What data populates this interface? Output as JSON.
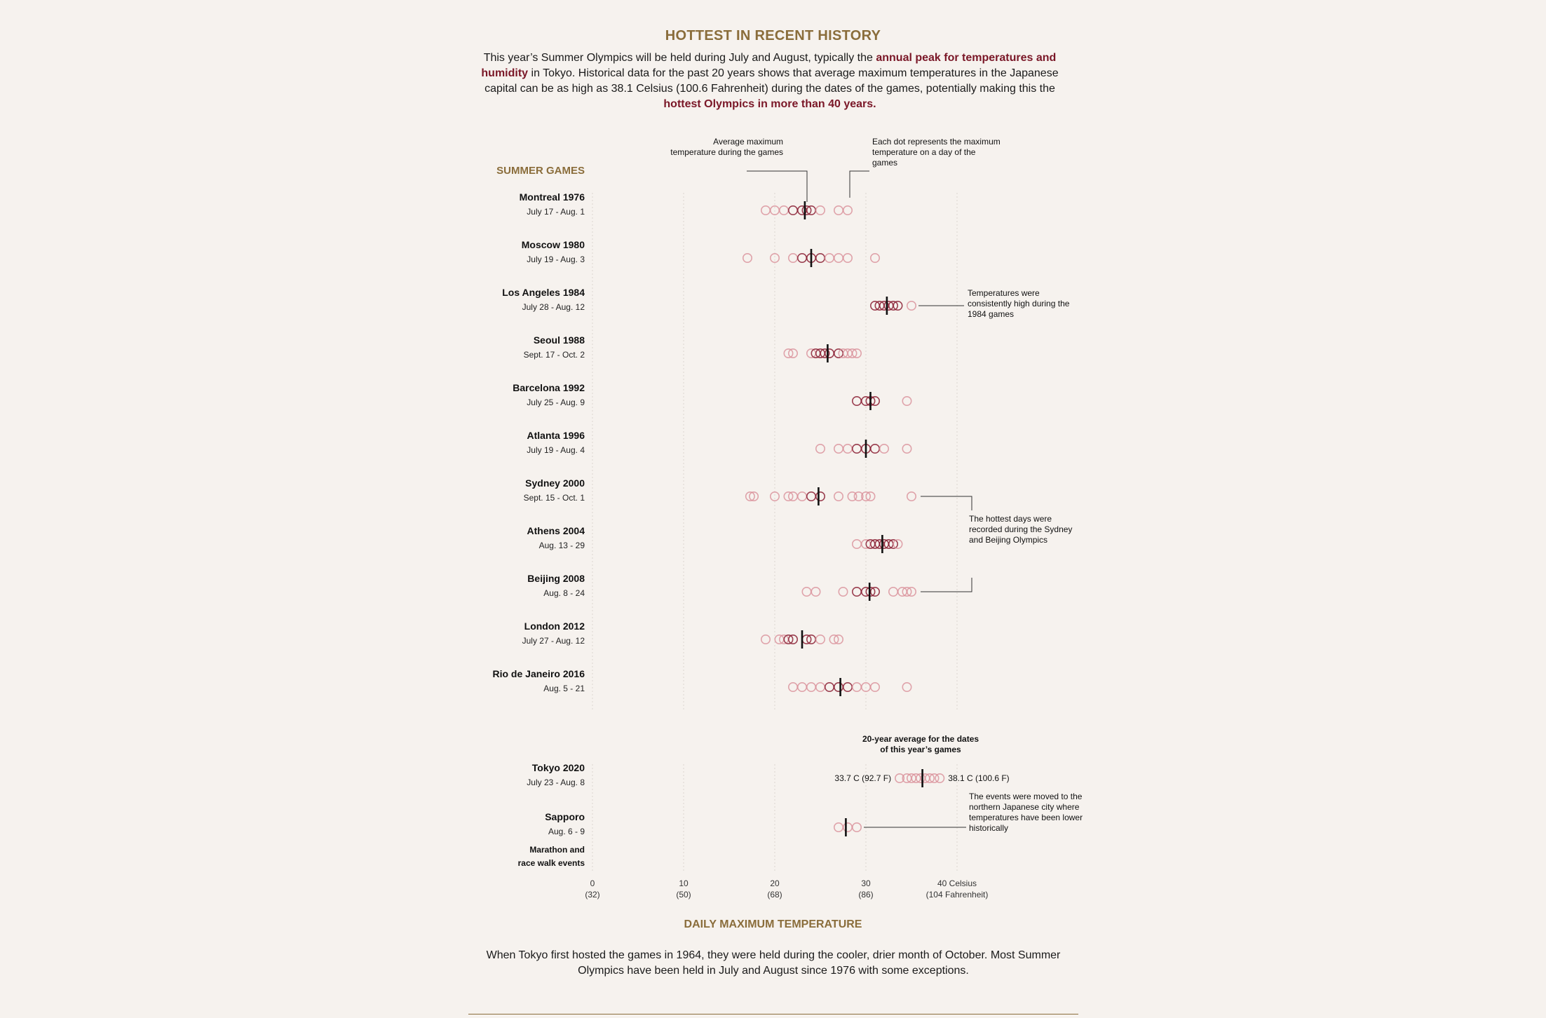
{
  "header": {
    "title": "HOTTEST IN RECENT HISTORY",
    "intro_1": "This year’s Summer Olympics will be held during July and August, typically the ",
    "intro_hl_1": "annual peak for temperatures and humidity",
    "intro_2": " in Tokyo. Historical data for the past 20 years shows that average maximum temperatures in the Japanese capital can be as high as 38.1 Celsius (100.6 Fahrenheit) during the dates of the games, potentially making this the ",
    "intro_hl_2": "hottest Olympics in more than 40 years."
  },
  "chart_data": {
    "type": "scatter",
    "section_label": "SUMMER GAMES",
    "xlabel": "DAILY MAXIMUM TEMPERATURE",
    "xlim": [
      0,
      40
    ],
    "ticks": [
      {
        "value": 0,
        "label": "0",
        "sub": "(32)"
      },
      {
        "value": 10,
        "label": "10",
        "sub": "(50)"
      },
      {
        "value": 20,
        "label": "20",
        "sub": "(68)"
      },
      {
        "value": 30,
        "label": "30",
        "sub": "(86)"
      },
      {
        "value": 40,
        "label": "40 Celsius",
        "sub": "(104 Fahrenheit)"
      }
    ],
    "colors": {
      "dot": "#d98e98",
      "dot_dark": "#8a1f33",
      "mean": "#111111",
      "grid": "#dcd6d0"
    },
    "games": [
      {
        "name": "Montreal 1976",
        "dates": "July 17 - Aug. 1",
        "mean": 23.3,
        "temps": [
          19,
          20,
          21,
          22,
          23,
          23.5,
          24,
          25,
          27,
          28
        ]
      },
      {
        "name": "Moscow 1980",
        "dates": "July 19 - Aug. 3",
        "mean": 24,
        "temps": [
          17,
          20,
          22,
          23,
          24,
          25,
          26,
          27,
          28,
          31
        ]
      },
      {
        "name": "Los Angeles 1984",
        "dates": "July 28 - Aug. 12",
        "mean": 32.3,
        "temps": [
          31,
          31.5,
          32,
          32.5,
          33,
          33.5,
          35
        ]
      },
      {
        "name": "Seoul 1988",
        "dates": "Sept. 17 - Oct. 2",
        "mean": 25.8,
        "temps": [
          21.5,
          22,
          24,
          24.5,
          25,
          25.5,
          26,
          27,
          27.5,
          28,
          28.5,
          29
        ]
      },
      {
        "name": "Barcelona 1992",
        "dates": "July 25 - Aug. 9",
        "mean": 30.5,
        "temps": [
          29,
          30,
          30.5,
          31,
          34.5
        ]
      },
      {
        "name": "Atlanta 1996",
        "dates": "July 19 - Aug. 4",
        "mean": 30,
        "temps": [
          25,
          27,
          28,
          29,
          30,
          31,
          32,
          34.5
        ]
      },
      {
        "name": "Sydney 2000",
        "dates": "Sept. 15 - Oct. 1",
        "mean": 24.8,
        "temps": [
          17.3,
          17.7,
          20,
          21.5,
          22,
          23,
          24,
          25,
          27,
          28.5,
          29.2,
          30,
          30.5,
          35
        ]
      },
      {
        "name": "Athens 2004",
        "dates": "Aug. 13 - 29",
        "mean": 31.8,
        "temps": [
          29,
          30,
          30.5,
          31,
          31.5,
          32,
          32.5,
          33,
          33.5
        ]
      },
      {
        "name": "Beijing 2008",
        "dates": "Aug. 8 - 24",
        "mean": 30.4,
        "temps": [
          23.5,
          24.5,
          27.5,
          29,
          30,
          30.5,
          31,
          33,
          34,
          34.5,
          35
        ]
      },
      {
        "name": "London 2012",
        "dates": "July 27 - Aug. 12",
        "mean": 23,
        "temps": [
          19,
          20.5,
          21,
          21.5,
          22,
          23.5,
          24,
          25,
          26.5,
          27
        ]
      },
      {
        "name": "Rio de Janeiro 2016",
        "dates": "Aug. 5 - 21",
        "mean": 27.2,
        "temps": [
          22,
          23,
          24,
          25,
          26,
          27,
          28,
          29,
          30,
          31,
          34.5
        ]
      }
    ],
    "tokyo": {
      "name": "Tokyo 2020",
      "dates": "July 23 - Aug. 8",
      "mean": 36.2,
      "temps": [
        33.7,
        34.5,
        35,
        35.5,
        36,
        36.5,
        37,
        37.5,
        38.1
      ],
      "min_label": "33.7 C (92.7 F)",
      "max_label": "38.1 C (100.6 F)"
    },
    "sapporo": {
      "name": "Sapporo",
      "dates": "Aug. 6 - 9",
      "note_1": "Marathon and",
      "note_2": "race walk events",
      "mean": 27.8,
      "temps": [
        27,
        28,
        29
      ]
    },
    "annotations": {
      "avg_max_1": "Average maximum",
      "avg_max_2": "temperature during the games",
      "each_dot_1": "Each dot represents the maximum",
      "each_dot_2": "temperature on a day of the",
      "each_dot_3": "games",
      "la_1": "Temperatures were",
      "la_2": "consistently high during the",
      "la_3": "1984 games",
      "hot_1": "The hottest days were",
      "hot_2": "recorded during the Sydney",
      "hot_3": "and Beijing Olympics",
      "tokyo_1": "20-year average for the dates",
      "tokyo_2": "of this year’s games",
      "sapporo_1": "The events were moved to the",
      "sapporo_2": "northern Japanese city where",
      "sapporo_3": "temperatures have been lower",
      "sapporo_4": "historically"
    }
  },
  "footer": {
    "note": "When Tokyo first hosted the games in 1964, they were held during the cooler, drier month of October. Most Summer Olympics have been held in July and August since 1976 with some exceptions."
  }
}
